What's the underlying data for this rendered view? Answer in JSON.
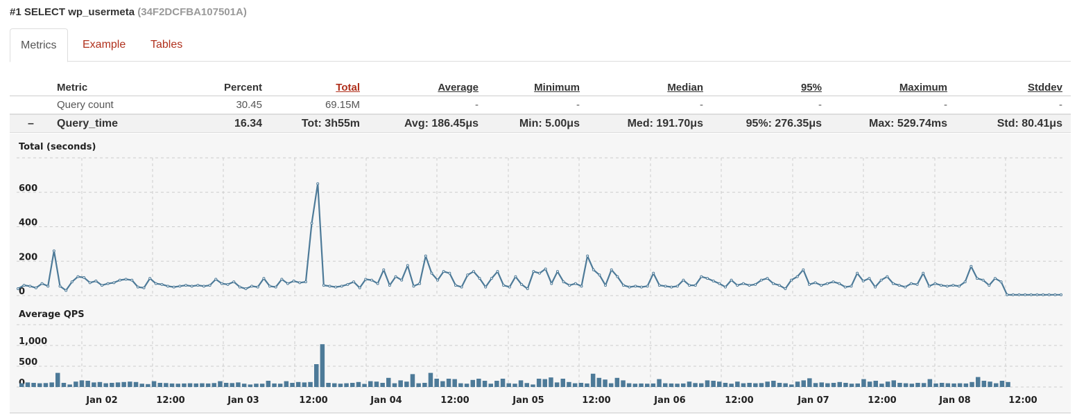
{
  "header": {
    "title": "#1 SELECT wp_usermeta",
    "query_id": "(34F2DCFBA107501A)"
  },
  "tabs": [
    {
      "label": "Metrics",
      "active": true
    },
    {
      "label": "Example",
      "active": false
    },
    {
      "label": "Tables",
      "active": false
    }
  ],
  "metrics_table": {
    "columns": [
      "Metric",
      "Percent",
      "Total",
      "Average",
      "Minimum",
      "Median",
      "95%",
      "Maximum",
      "Stddev"
    ],
    "rows": [
      {
        "toggle": "",
        "cells": [
          "Query count",
          "30.45",
          "69.15M",
          "-",
          "-",
          "-",
          "-",
          "-",
          "-"
        ]
      },
      {
        "toggle": "–",
        "cells": [
          "Query_time",
          "16.34",
          "Tot: 3h55m",
          "Avg: 186.45μs",
          "Min: 5.00μs",
          "Med: 191.70μs",
          "95%: 276.35μs",
          "Max: 529.74ms",
          "Std: 80.41μs"
        ]
      }
    ]
  },
  "colors": {
    "series": "#4d7a98",
    "tab_link": "#b0301c",
    "panel_bg": "#f6f6f6"
  },
  "chart_data": [
    {
      "type": "line",
      "title": "Total (seconds)",
      "ylim": [
        0,
        800
      ],
      "y_ticks": [
        "0",
        "200",
        "400",
        "600"
      ],
      "x_ticks": [
        "Jan 02",
        "12:00",
        "Jan 03",
        "12:00",
        "Jan 04",
        "12:00",
        "Jan 05",
        "12:00",
        "Jan 06",
        "12:00",
        "Jan 07",
        "12:00",
        "Jan 08",
        "12:00"
      ],
      "grid": true,
      "values": [
        40,
        60,
        55,
        45,
        70,
        55,
        260,
        55,
        30,
        80,
        110,
        105,
        75,
        85,
        60,
        70,
        75,
        90,
        95,
        90,
        50,
        45,
        100,
        70,
        65,
        55,
        50,
        55,
        60,
        55,
        60,
        55,
        60,
        95,
        70,
        65,
        80,
        50,
        40,
        55,
        50,
        100,
        55,
        50,
        95,
        70,
        85,
        75,
        80,
        420,
        650,
        60,
        55,
        50,
        55,
        65,
        80,
        45,
        95,
        90,
        70,
        150,
        60,
        110,
        90,
        175,
        55,
        70,
        230,
        130,
        90,
        140,
        130,
        60,
        50,
        120,
        140,
        100,
        50,
        100,
        140,
        60,
        50,
        110,
        65,
        40,
        140,
        130,
        155,
        70,
        140,
        80,
        60,
        70,
        55,
        230,
        150,
        120,
        60,
        150,
        110,
        60,
        50,
        55,
        50,
        55,
        130,
        60,
        55,
        50,
        55,
        90,
        60,
        60,
        110,
        100,
        85,
        70,
        50,
        90,
        60,
        70,
        60,
        65,
        90,
        100,
        70,
        60,
        40,
        90,
        110,
        150,
        65,
        75,
        60,
        70,
        80,
        70,
        50,
        55,
        130,
        85,
        100,
        50,
        90,
        110,
        70,
        60,
        50,
        70,
        65,
        130,
        55,
        70,
        60,
        55,
        60,
        55,
        80,
        170,
        100,
        90,
        60,
        100,
        80,
        5,
        5,
        5,
        5,
        5,
        5,
        5,
        5,
        5,
        5
      ]
    },
    {
      "type": "bar",
      "title": "Average QPS",
      "ylim": [
        0,
        1500
      ],
      "y_ticks": [
        "0",
        "500",
        "1,000"
      ],
      "x_ticks": [
        "Jan 02",
        "12:00",
        "Jan 03",
        "12:00",
        "Jan 04",
        "12:00",
        "Jan 05",
        "12:00",
        "Jan 06",
        "12:00",
        "Jan 07",
        "12:00",
        "Jan 08",
        "12:00"
      ],
      "grid": true,
      "values": [
        90,
        110,
        100,
        90,
        95,
        110,
        340,
        100,
        60,
        130,
        160,
        150,
        110,
        120,
        90,
        100,
        110,
        120,
        130,
        120,
        80,
        70,
        140,
        100,
        95,
        85,
        80,
        85,
        90,
        85,
        90,
        85,
        95,
        140,
        100,
        95,
        110,
        80,
        60,
        80,
        80,
        150,
        85,
        80,
        140,
        100,
        120,
        110,
        120,
        550,
        1030,
        100,
        90,
        80,
        90,
        100,
        120,
        75,
        140,
        130,
        100,
        220,
        90,
        160,
        130,
        310,
        90,
        100,
        340,
        200,
        140,
        200,
        190,
        90,
        80,
        170,
        200,
        150,
        80,
        150,
        200,
        90,
        80,
        160,
        95,
        60,
        200,
        190,
        230,
        110,
        200,
        120,
        90,
        100,
        85,
        320,
        220,
        180,
        90,
        220,
        160,
        90,
        80,
        85,
        80,
        85,
        190,
        90,
        85,
        80,
        85,
        130,
        95,
        90,
        160,
        150,
        130,
        100,
        80,
        130,
        90,
        100,
        90,
        95,
        130,
        150,
        100,
        90,
        60,
        130,
        160,
        210,
        95,
        110,
        90,
        100,
        120,
        100,
        80,
        85,
        190,
        130,
        150,
        80,
        130,
        160,
        100,
        90,
        80,
        100,
        95,
        190,
        85,
        100,
        90,
        85,
        90,
        85,
        120,
        240,
        150,
        130,
        90,
        150,
        120
      ]
    }
  ]
}
